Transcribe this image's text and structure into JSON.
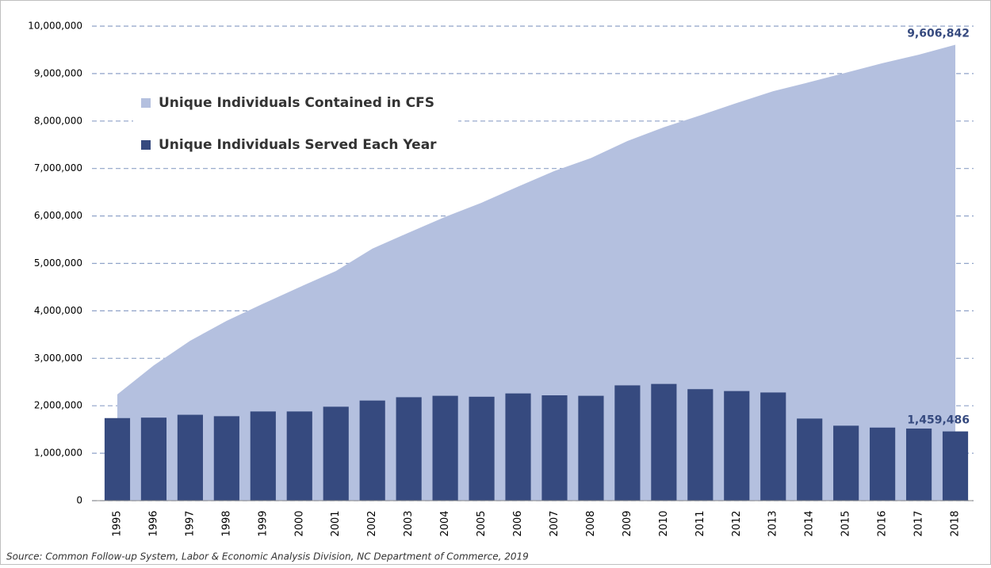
{
  "chart_data": {
    "type": "bar+area",
    "source": "Source: Common Follow-up System, Labor & Economic Analysis Division, NC Department of Commerce, 2019",
    "categories": [
      "1995",
      "1996",
      "1997",
      "1998",
      "1999",
      "2000",
      "2001",
      "2002",
      "2003",
      "2004",
      "2005",
      "2006",
      "2007",
      "2008",
      "2009",
      "2010",
      "2011",
      "2012",
      "2013",
      "2014",
      "2015",
      "2016",
      "2017",
      "2018"
    ],
    "series": [
      {
        "name": "Unique Individuals Contained in CFS",
        "type": "area",
        "color": "#b4c0df",
        "values": [
          2240000,
          2850000,
          3370000,
          3790000,
          4150000,
          4500000,
          4840000,
          5310000,
          5650000,
          5980000,
          6280000,
          6620000,
          6950000,
          7220000,
          7580000,
          7870000,
          8120000,
          8380000,
          8630000,
          8820000,
          9020000,
          9220000,
          9400000,
          9606842
        ],
        "value_labels": [
          null,
          null,
          null,
          null,
          null,
          null,
          null,
          null,
          null,
          null,
          null,
          null,
          null,
          null,
          null,
          null,
          null,
          null,
          null,
          null,
          null,
          null,
          null,
          "9,606,842"
        ]
      },
      {
        "name": "Unique Individuals Served Each Year",
        "type": "bar",
        "color": "#364a7f",
        "values": [
          1740000,
          1750000,
          1810000,
          1780000,
          1880000,
          1880000,
          1980000,
          2110000,
          2180000,
          2210000,
          2190000,
          2260000,
          2220000,
          2210000,
          2430000,
          2460000,
          2350000,
          2310000,
          2280000,
          1730000,
          1580000,
          1540000,
          1520000,
          1459486
        ],
        "value_labels": [
          null,
          null,
          null,
          null,
          null,
          null,
          null,
          null,
          null,
          null,
          null,
          null,
          null,
          null,
          null,
          null,
          null,
          null,
          null,
          null,
          null,
          null,
          null,
          "1,459,486"
        ]
      }
    ],
    "ylim": [
      0,
      10000000
    ],
    "yticks": [
      0,
      {
        "value": 1000000,
        "label": "1,000,000"
      },
      {
        "value": 2000000,
        "label": "2,000,000"
      },
      {
        "value": 3000000,
        "label": "3,000,000"
      },
      {
        "value": 4000000,
        "label": "4,000,000"
      },
      {
        "value": 5000000,
        "label": "5,000,000"
      },
      {
        "value": 6000000,
        "label": "6,000,000"
      },
      {
        "value": 7000000,
        "label": "7,000,000"
      },
      {
        "value": 8000000,
        "label": "8,000,000"
      },
      {
        "value": 9000000,
        "label": "9,000,000"
      },
      {
        "value": 10000000,
        "label": "10,000,000"
      }
    ],
    "grid": true,
    "legend": "upper-left"
  }
}
